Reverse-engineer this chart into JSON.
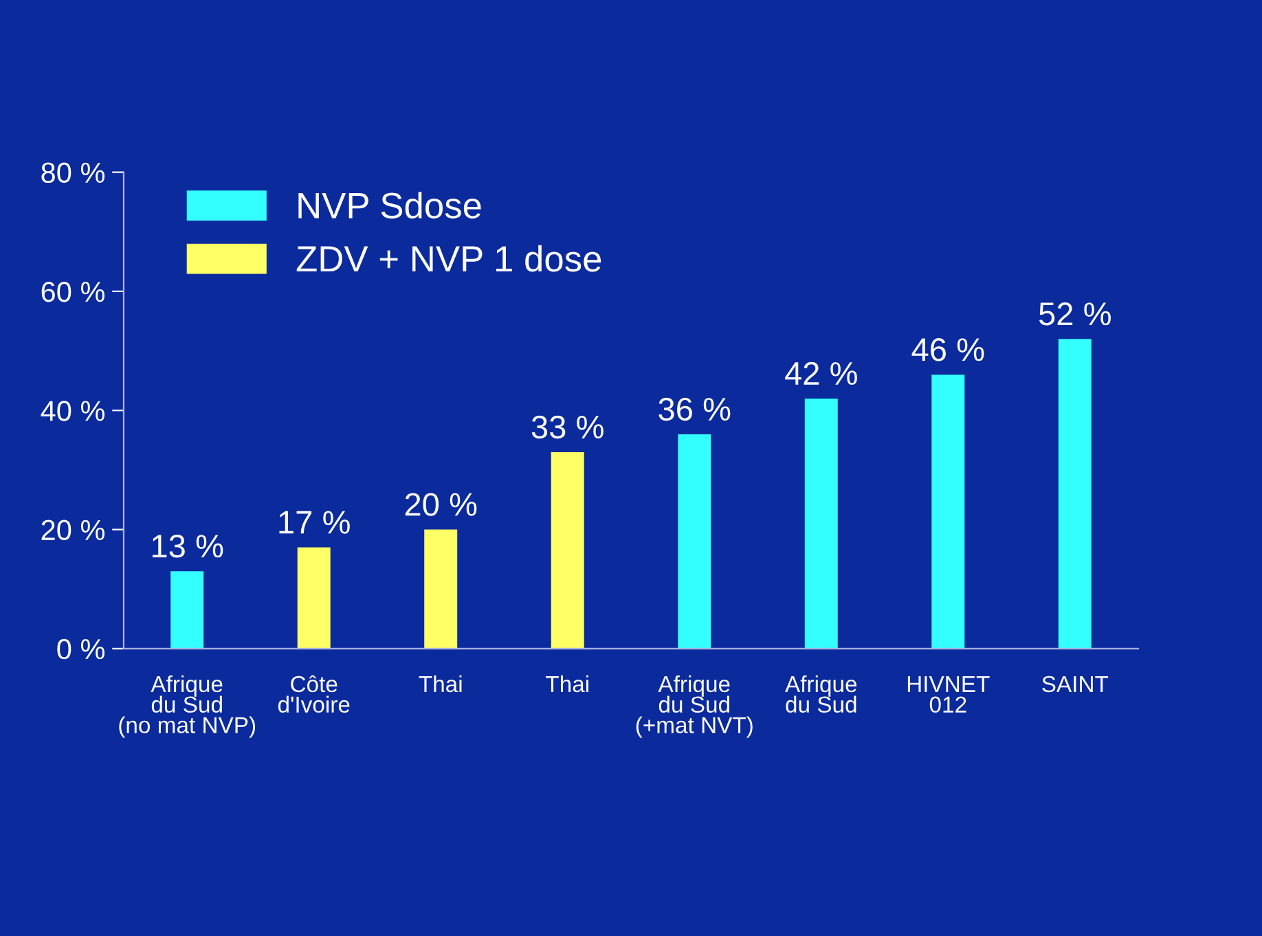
{
  "chart_data": {
    "type": "bar",
    "categories": [
      "Afrique\ndu Sud\n(no mat NVP)",
      "Côte\nd'Ivoire",
      "Thai",
      "Thai",
      "Afrique\ndu Sud\n(+mat NVT)",
      "Afrique\ndu Sud",
      "HIVNET\n012",
      "SAINT"
    ],
    "series": [
      {
        "name": "NVP Sdose",
        "color": "#33ffff",
        "values": [
          13,
          null,
          null,
          null,
          36,
          42,
          46,
          52
        ]
      },
      {
        "name": "ZDV + NVP 1 dose",
        "color": "#ffff66",
        "values": [
          null,
          17,
          20,
          33,
          null,
          null,
          null,
          null
        ]
      }
    ],
    "ylim": [
      0,
      80
    ],
    "yticks": [
      {
        "value": 0,
        "label": "0 %"
      },
      {
        "value": 20,
        "label": "20 %"
      },
      {
        "value": 40,
        "label": "40 %"
      },
      {
        "value": 60,
        "label": "60 %"
      },
      {
        "value": 80,
        "label": "80 %"
      }
    ],
    "value_labels": [
      "13 %",
      "17 %",
      "20 %",
      "33 %",
      "36 %",
      "42 %",
      "46 %",
      "52 %"
    ],
    "grid": false,
    "legend": "top left"
  }
}
